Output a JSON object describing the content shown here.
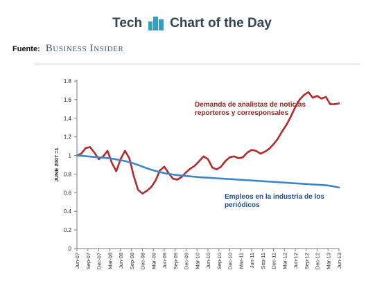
{
  "header": {
    "brand_left": "Tech",
    "brand_right": "Chart of the Day"
  },
  "source": {
    "label": "Fuente:",
    "name": "Business Insider"
  },
  "colors": {
    "demand": "#b32a2a",
    "jobs": "#3d86c6",
    "axis": "#7a7a7a",
    "brand": "#34444f",
    "logo": "#2ba3c4"
  },
  "chart_data": {
    "type": "line",
    "ylabel": "JUNE 2007 =1",
    "xlabel": "",
    "ylim": [
      0,
      1.8
    ],
    "yticks": [
      "0",
      "0.2",
      "0.4",
      "0.6",
      "0.8",
      "1",
      "1.2",
      "1.4",
      "1.6",
      "1.8"
    ],
    "xticks": [
      "Jun-07",
      "Sep-07",
      "Dec-07",
      "Mar-08",
      "Jun-08",
      "Sep-08",
      "Dec-08",
      "Mar-09",
      "Jun-09",
      "Sep-09",
      "Dec-09",
      "Mar-10",
      "Jun-10",
      "Sep-10",
      "Dec-10",
      "Mar-11",
      "Jun-11",
      "Sep-11",
      "Dec-11",
      "Mar-12",
      "Jun-12",
      "Sep-12",
      "Dec-12",
      "Mar-13",
      "Jun-13"
    ],
    "grid": false,
    "legend": "none",
    "annotations": [
      {
        "text": "Demanda de analistas de noticias reporteros y corresponsales",
        "series": 0
      },
      {
        "text": "Empleos en la industria de los periódicos",
        "series": 1
      }
    ],
    "series": [
      {
        "name": "Demanda de analistas de noticias reporteros y corresponsales",
        "color": "#b32a2a",
        "values": [
          1.0,
          1.02,
          1.08,
          1.09,
          1.03,
          0.96,
          0.99,
          1.05,
          0.92,
          0.83,
          0.96,
          1.05,
          0.97,
          0.78,
          0.63,
          0.59,
          0.62,
          0.66,
          0.73,
          0.84,
          0.88,
          0.81,
          0.75,
          0.74,
          0.77,
          0.82,
          0.86,
          0.89,
          0.94,
          0.99,
          0.96,
          0.87,
          0.85,
          0.88,
          0.94,
          0.98,
          0.99,
          0.97,
          0.98,
          1.03,
          1.06,
          1.05,
          1.02,
          1.04,
          1.07,
          1.12,
          1.18,
          1.26,
          1.33,
          1.42,
          1.52,
          1.6,
          1.65,
          1.68,
          1.62,
          1.64,
          1.61,
          1.63,
          1.55,
          1.55,
          1.56
        ]
      },
      {
        "name": "Empleos en la industria de los periódicos",
        "color": "#3d86c6",
        "values": [
          1.0,
          0.996,
          0.992,
          0.988,
          0.984,
          0.98,
          0.976,
          0.972,
          0.966,
          0.958,
          0.949,
          0.94,
          0.928,
          0.914,
          0.898,
          0.88,
          0.863,
          0.847,
          0.833,
          0.821,
          0.811,
          0.802,
          0.795,
          0.789,
          0.784,
          0.779,
          0.775,
          0.771,
          0.767,
          0.764,
          0.761,
          0.758,
          0.755,
          0.752,
          0.749,
          0.746,
          0.743,
          0.74,
          0.737,
          0.734,
          0.731,
          0.728,
          0.725,
          0.722,
          0.719,
          0.716,
          0.713,
          0.71,
          0.707,
          0.704,
          0.701,
          0.698,
          0.695,
          0.692,
          0.689,
          0.686,
          0.683,
          0.68,
          0.675,
          0.665,
          0.655
        ]
      }
    ]
  }
}
